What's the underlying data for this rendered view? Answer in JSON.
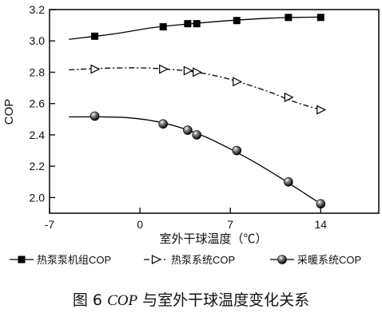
{
  "chart_data": {
    "type": "line",
    "xlabel": "室外干球温度（℃）",
    "ylabel": "COP",
    "xlim": [
      -7,
      18.5
    ],
    "ylim": [
      1.9,
      3.2
    ],
    "xticks": [
      -7,
      0,
      7,
      14
    ],
    "xtick_labels": [
      "-7",
      "0",
      "7",
      "14"
    ],
    "yticks": [
      2.0,
      2.2,
      2.4,
      2.6,
      2.8,
      3.0,
      3.2
    ],
    "ytick_labels": [
      "2.0",
      "2.2",
      "2.4",
      "2.6",
      "2.8",
      "3.0",
      "3.2"
    ],
    "grid": false,
    "legend_position": "bottom",
    "series": [
      {
        "name": "热泵泵机组COP",
        "marker": "square",
        "line_style": "solid",
        "color": "#000000",
        "x": [
          -3.5,
          1.8,
          3.7,
          4.4,
          7.5,
          11.5,
          14.0
        ],
        "y": [
          3.03,
          3.09,
          3.11,
          3.11,
          3.13,
          3.15,
          3.15
        ]
      },
      {
        "name": "热泵系统COP",
        "marker": "triangle-right-open",
        "line_style": "dash-dot",
        "color": "#000000",
        "x": [
          -3.5,
          1.8,
          3.7,
          4.4,
          7.5,
          11.5,
          14.0
        ],
        "y": [
          2.82,
          2.82,
          2.81,
          2.8,
          2.74,
          2.64,
          2.56
        ]
      },
      {
        "name": "采暖系统COP",
        "marker": "sphere",
        "line_style": "solid",
        "color": "#000000",
        "x": [
          -3.5,
          1.8,
          3.7,
          4.4,
          7.5,
          11.5,
          14.0
        ],
        "y": [
          2.52,
          2.47,
          2.43,
          2.4,
          2.3,
          2.1,
          1.96
        ]
      }
    ],
    "fit_curves": {
      "热泵泵机组COP": {
        "x": [
          -5.5,
          -2,
          1,
          4,
          7,
          10,
          12,
          14
        ],
        "y": [
          3.01,
          3.045,
          3.085,
          3.11,
          3.13,
          3.145,
          3.15,
          3.152
        ]
      },
      "热泵系统COP": {
        "x": [
          -5.5,
          -3,
          0,
          2,
          4,
          6,
          8,
          10,
          12,
          14
        ],
        "y": [
          2.815,
          2.825,
          2.828,
          2.82,
          2.805,
          2.775,
          2.73,
          2.675,
          2.61,
          2.56
        ]
      },
      "采暖系统COP": {
        "x": [
          -5.5,
          -3,
          -1,
          1,
          3,
          5,
          7,
          9,
          11,
          12.5,
          14
        ],
        "y": [
          2.515,
          2.515,
          2.51,
          2.49,
          2.45,
          2.39,
          2.31,
          2.22,
          2.12,
          2.04,
          1.96
        ]
      }
    }
  },
  "caption": {
    "prefix": "图 6 ",
    "emphasis": "COP",
    "suffix": " 与室外干球温度变化关系"
  }
}
